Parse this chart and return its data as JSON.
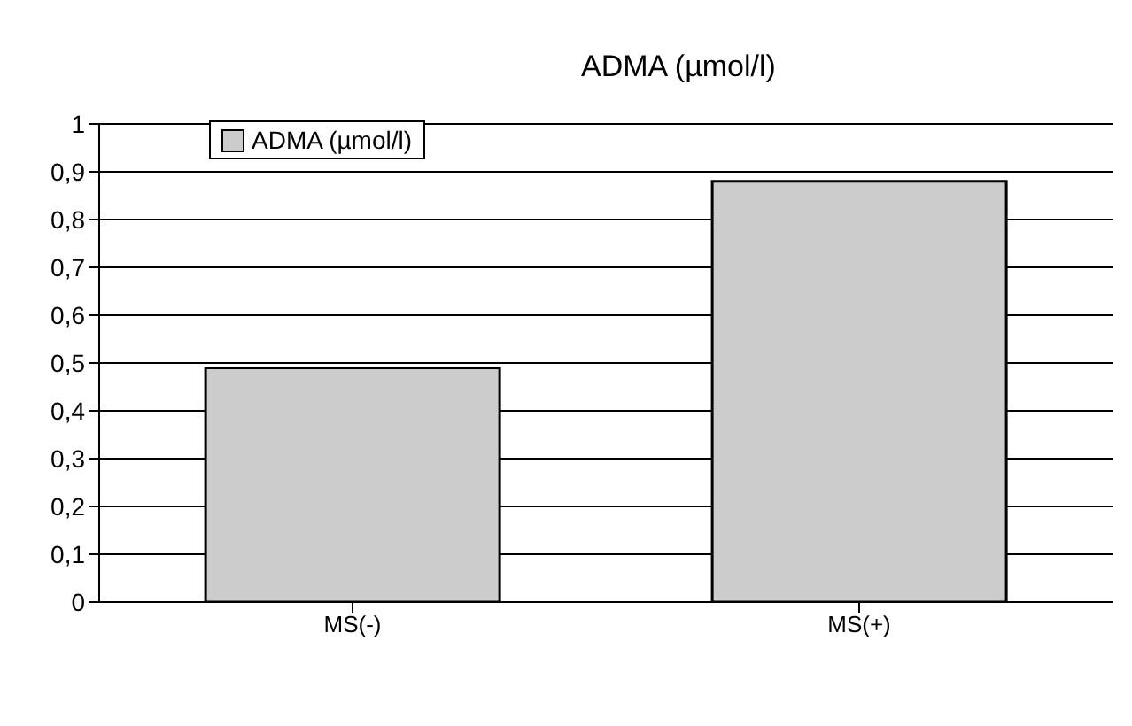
{
  "chart_data": {
    "type": "bar",
    "title": "ADMA (µmol/l)",
    "categories": [
      "MS(-)",
      "MS(+)"
    ],
    "series": [
      {
        "name": "ADMA (µmol/l)",
        "color": "#cccccc",
        "values": [
          0.49,
          0.88
        ]
      }
    ],
    "ylim": [
      0,
      1
    ],
    "yticks": [
      {
        "value": 0,
        "label": "0"
      },
      {
        "value": 0.1,
        "label": "0,1"
      },
      {
        "value": 0.2,
        "label": "0,2"
      },
      {
        "value": 0.3,
        "label": "0,3"
      },
      {
        "value": 0.4,
        "label": "0,4"
      },
      {
        "value": 0.5,
        "label": "0,5"
      },
      {
        "value": 0.6,
        "label": "0,6"
      },
      {
        "value": 0.7,
        "label": "0,7"
      },
      {
        "value": 0.8,
        "label": "0,8"
      },
      {
        "value": 0.9,
        "label": "0,9"
      },
      {
        "value": 1,
        "label": "1"
      }
    ],
    "grid": "y",
    "legend": "top left"
  }
}
